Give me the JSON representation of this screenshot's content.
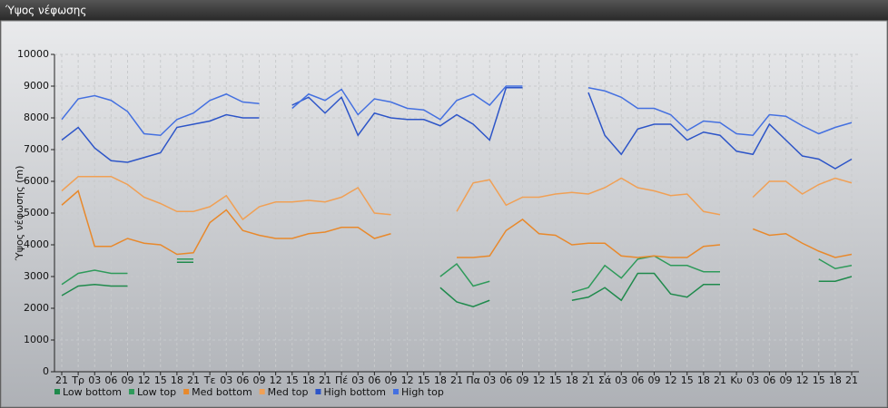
{
  "chart_data": {
    "type": "line",
    "title": "Ύψος νέφωσης",
    "y_label": "Ύψος νέφωσης (m)",
    "categories": [
      "21",
      "Τρ",
      "03",
      "06",
      "09",
      "12",
      "15",
      "18",
      "21",
      "Τε",
      "03",
      "06",
      "09",
      "12",
      "15",
      "18",
      "21",
      "Πέ",
      "03",
      "06",
      "09",
      "12",
      "15",
      "18",
      "21",
      "Πα",
      "03",
      "06",
      "09",
      "12",
      "15",
      "18",
      "21",
      "Σά",
      "03",
      "06",
      "09",
      "12",
      "15",
      "18",
      "21",
      "Κυ",
      "03",
      "06",
      "09",
      "12",
      "15",
      "18",
      "21"
    ],
    "ylim": [
      0,
      10000
    ],
    "yticks": [
      0,
      1000,
      2000,
      3000,
      4000,
      5000,
      6000,
      7000,
      8000,
      9000,
      10000
    ],
    "grid": true,
    "series": [
      {
        "name": "Low bottom",
        "color": "#1f8a4c",
        "values": [
          2400,
          2700,
          2750,
          2700,
          2700,
          null,
          null,
          3450,
          3450,
          null,
          null,
          null,
          null,
          null,
          null,
          null,
          null,
          null,
          null,
          null,
          null,
          null,
          null,
          2650,
          2200,
          2050,
          2250,
          null,
          null,
          null,
          null,
          2250,
          2350,
          2650,
          2250,
          3100,
          3100,
          2450,
          2350,
          2750,
          2750,
          null,
          null,
          null,
          null,
          null,
          2850,
          2850,
          3000
        ]
      },
      {
        "name": "Low top",
        "color": "#2e9a5a",
        "values": [
          2750,
          3100,
          3200,
          3100,
          3100,
          null,
          null,
          3550,
          3550,
          null,
          null,
          null,
          null,
          null,
          null,
          null,
          null,
          null,
          null,
          null,
          null,
          null,
          null,
          3000,
          3400,
          2700,
          2850,
          null,
          null,
          null,
          null,
          2500,
          2650,
          3350,
          2950,
          3550,
          3650,
          3350,
          3350,
          3150,
          3150,
          null,
          null,
          null,
          null,
          null,
          3550,
          3250,
          3350
        ]
      },
      {
        "name": "Med bottom",
        "color": "#e8892c",
        "values": [
          5250,
          5700,
          3950,
          3950,
          4200,
          4050,
          4000,
          3700,
          3750,
          4700,
          5100,
          4450,
          4300,
          4200,
          4200,
          4350,
          4400,
          4550,
          4550,
          4200,
          4350,
          null,
          null,
          null,
          3600,
          3600,
          3650,
          4450,
          4800,
          4350,
          4300,
          4000,
          4050,
          4050,
          3650,
          3600,
          3650,
          3600,
          3600,
          3950,
          4000,
          null,
          4500,
          4300,
          4350,
          4050,
          3800,
          3600,
          3700
        ]
      },
      {
        "name": "Med top",
        "color": "#f0a055",
        "values": [
          5700,
          6150,
          6150,
          6150,
          5900,
          5500,
          5300,
          5050,
          5050,
          5200,
          5550,
          4800,
          5200,
          5350,
          5350,
          5400,
          5350,
          5500,
          5800,
          5000,
          4950,
          null,
          null,
          null,
          5050,
          5950,
          6050,
          5250,
          5500,
          5500,
          5600,
          5650,
          5600,
          5800,
          6100,
          5800,
          5700,
          5550,
          5600,
          5050,
          4950,
          null,
          5500,
          6000,
          6000,
          5600,
          5900,
          6100,
          5950
        ]
      },
      {
        "name": "High bottom",
        "color": "#2d55c8",
        "values": [
          7300,
          7700,
          7050,
          6650,
          6600,
          6750,
          6900,
          7700,
          7800,
          7900,
          8100,
          8000,
          8000,
          null,
          8400,
          8650,
          8150,
          8650,
          7450,
          8150,
          8000,
          7950,
          7950,
          7750,
          8100,
          7800,
          7300,
          8950,
          8950,
          null,
          null,
          null,
          8800,
          7450,
          6850,
          7650,
          7800,
          7800,
          7300,
          7550,
          7450,
          6950,
          6850,
          7800,
          7300,
          6800,
          6700,
          6400,
          6700
        ]
      },
      {
        "name": "High top",
        "color": "#4470e0",
        "values": [
          7950,
          8600,
          8700,
          8550,
          8200,
          7500,
          7450,
          7950,
          8150,
          8550,
          8750,
          8500,
          8450,
          null,
          8300,
          8750,
          8550,
          8900,
          8100,
          8600,
          8500,
          8300,
          8250,
          7950,
          8550,
          8750,
          8400,
          9000,
          9000,
          null,
          null,
          null,
          8950,
          8850,
          8650,
          8300,
          8300,
          8100,
          7600,
          7900,
          7850,
          7500,
          7450,
          8100,
          8050,
          7750,
          7500,
          7700,
          7850
        ]
      }
    ]
  }
}
